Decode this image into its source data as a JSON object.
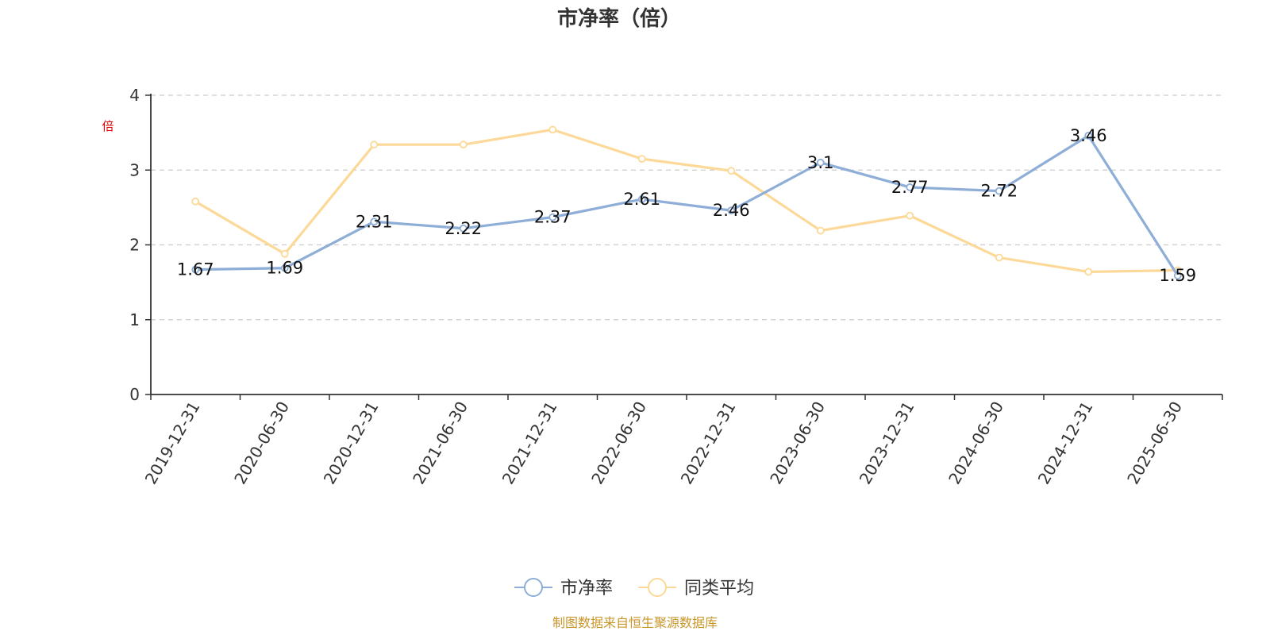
{
  "chart_data": {
    "type": "line",
    "title": "市净率（倍）",
    "ylabel": "倍",
    "ylim": [
      0,
      4
    ],
    "yticks": [
      0,
      1,
      2,
      3,
      4
    ],
    "grid": true,
    "legend_position": "bottom",
    "categories": [
      "2019-12-31",
      "2020-06-30",
      "2020-12-31",
      "2021-06-30",
      "2021-12-31",
      "2022-06-30",
      "2022-12-31",
      "2023-06-30",
      "2023-12-31",
      "2024-06-30",
      "2024-12-31",
      "2025-06-30"
    ],
    "series": [
      {
        "name": "市净率",
        "color": "#8eaed8",
        "show_labels": true,
        "values": [
          1.67,
          1.69,
          2.31,
          2.22,
          2.37,
          2.61,
          2.46,
          3.1,
          2.77,
          2.72,
          3.46,
          1.59
        ]
      },
      {
        "name": "同类平均",
        "color": "#fcd998",
        "show_labels": false,
        "values": [
          2.58,
          1.88,
          3.34,
          3.34,
          3.54,
          3.15,
          2.99,
          2.19,
          2.39,
          1.83,
          1.64,
          1.66
        ]
      }
    ]
  },
  "footer": {
    "source": "制图数据来自恒生聚源数据库"
  }
}
